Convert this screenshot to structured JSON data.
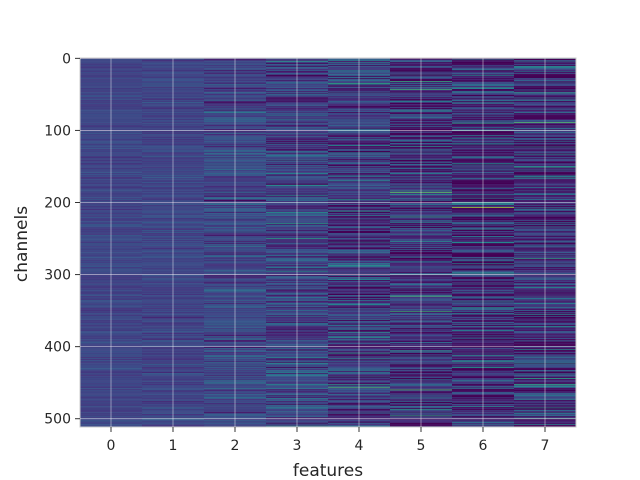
{
  "chart_data": {
    "type": "heatmap",
    "title": "",
    "xlabel": "features",
    "ylabel": "channels",
    "x_categories": [
      0,
      1,
      2,
      3,
      4,
      5,
      6,
      7
    ],
    "y_ticks": [
      0,
      100,
      200,
      300,
      400,
      500
    ],
    "xlim": [
      -0.5,
      7.5
    ],
    "ylim": [
      511.5,
      -0.5
    ],
    "y_inverted": true,
    "n_rows": 512,
    "colormap": "viridis",
    "value_range": [
      0,
      1
    ],
    "grid": true,
    "column_profiles": [
      {
        "feature": 0,
        "base": 0.21,
        "spread": 0.035
      },
      {
        "feature": 1,
        "base": 0.21,
        "spread": 0.04
      },
      {
        "feature": 2,
        "base": 0.22,
        "spread": 0.08
      },
      {
        "feature": 3,
        "base": 0.2,
        "spread": 0.11
      },
      {
        "feature": 4,
        "base": 0.18,
        "spread": 0.14
      },
      {
        "feature": 5,
        "base": 0.14,
        "spread": 0.16
      },
      {
        "feature": 6,
        "base": 0.12,
        "spread": 0.17
      },
      {
        "feature": 7,
        "base": 0.14,
        "spread": 0.16
      }
    ],
    "notable_cells": [
      {
        "feature": 6,
        "channel": 207,
        "value": 0.88
      },
      {
        "feature": 7,
        "channel": 89,
        "value": 0.72
      },
      {
        "feature": 4,
        "channel": 457,
        "value": 0.7
      },
      {
        "feature": 5,
        "channel": 43,
        "value": 0.68
      },
      {
        "feature": 7,
        "channel": 278,
        "value": 0.62
      },
      {
        "feature": 4,
        "channel": 212,
        "value": 0.58
      },
      {
        "feature": 6,
        "channel": 298,
        "value": 0.55
      },
      {
        "feature": 3,
        "channel": 190,
        "value": 0.5
      },
      {
        "feature": 5,
        "channel": 487,
        "value": 0.55
      },
      {
        "feature": 2,
        "channel": 75,
        "value": 0.45
      },
      {
        "feature": 6,
        "channel": 255,
        "value": 0.5
      },
      {
        "feature": 4,
        "channel": 380,
        "value": 0.52
      },
      {
        "feature": 7,
        "channel": 500,
        "value": 0.55
      }
    ]
  }
}
